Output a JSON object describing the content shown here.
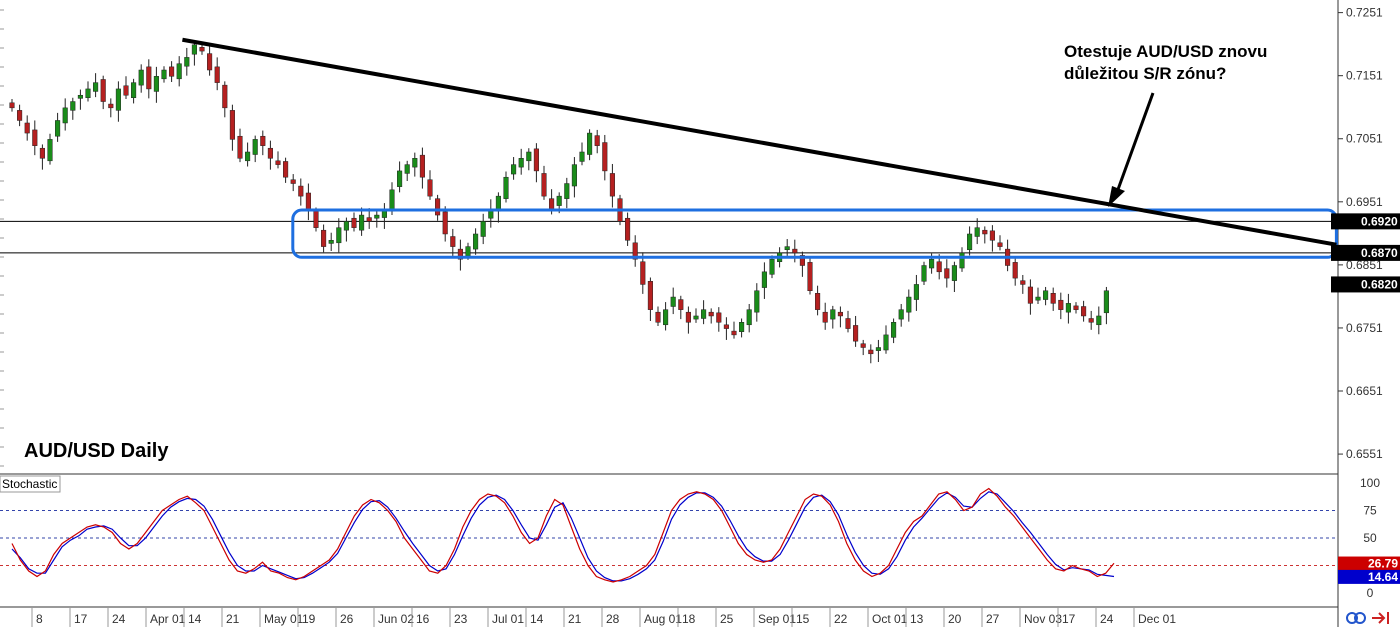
{
  "chart_data": [
    {
      "type": "candlestick",
      "title": "AUD/USD Daily",
      "annotation": [
        "Otestuje AUD/USD znovu",
        "důležitou S/R zónu?"
      ],
      "ylim": [
        0.6521,
        0.7271
      ],
      "y_ticks": [
        "0.7251",
        "0.7151",
        "0.7051",
        "0.6951",
        "0.6851",
        "0.6751",
        "0.6651",
        "0.6551"
      ],
      "price_tags": [
        {
          "label": "0.6920",
          "value": 0.692,
          "color": "#000000"
        },
        {
          "label": "0.6870",
          "value": 0.687,
          "color": "#000000"
        },
        {
          "label": "0.6820",
          "value": 0.682,
          "color": "#000000"
        }
      ],
      "horizontal_lines": [
        0.692,
        0.687
      ],
      "sr_zone": {
        "from_index": 38,
        "to_index": 174,
        "top": 0.6938,
        "bottom": 0.6863
      },
      "trendline": {
        "from_index": 24,
        "from_value": 0.7208,
        "to_index": 174,
        "to_value": 0.6883
      },
      "x_labels": [
        {
          "index": 0,
          "label": "8"
        },
        {
          "index": 5,
          "label": "17"
        },
        {
          "index": 10,
          "label": "24"
        },
        {
          "index": 15,
          "label": "Apr 01"
        },
        {
          "index": 20,
          "label": "14"
        },
        {
          "index": 25,
          "label": "21"
        },
        {
          "index": 30,
          "label": "May 01"
        },
        {
          "index": 35,
          "label": "19"
        },
        {
          "index": 40,
          "label": "26"
        },
        {
          "index": 45,
          "label": "Jun 02"
        },
        {
          "index": 50,
          "label": "16"
        },
        {
          "index": 55,
          "label": "23"
        },
        {
          "index": 60,
          "label": "Jul 01"
        },
        {
          "index": 65,
          "label": "14"
        },
        {
          "index": 70,
          "label": "21"
        },
        {
          "index": 75,
          "label": "28"
        },
        {
          "index": 80,
          "label": "Aug 01"
        },
        {
          "index": 85,
          "label": "18"
        },
        {
          "index": 90,
          "label": "25"
        },
        {
          "index": 95,
          "label": "Sep 01"
        },
        {
          "index": 100,
          "label": "15"
        },
        {
          "index": 105,
          "label": "22"
        },
        {
          "index": 110,
          "label": "Oct 01"
        },
        {
          "index": 115,
          "label": "13"
        },
        {
          "index": 120,
          "label": "20"
        },
        {
          "index": 125,
          "label": "27"
        },
        {
          "index": 130,
          "label": "Nov 03"
        },
        {
          "index": 135,
          "label": "17"
        },
        {
          "index": 140,
          "label": "24"
        },
        {
          "index": 145,
          "label": "Dec 01"
        }
      ],
      "close": [
        0.71,
        0.708,
        0.706,
        0.704,
        0.702,
        0.705,
        0.708,
        0.71,
        0.711,
        0.712,
        0.713,
        0.714,
        0.711,
        0.71,
        0.713,
        0.712,
        0.714,
        0.716,
        0.713,
        0.715,
        0.716,
        0.715,
        0.717,
        0.718,
        0.72,
        0.719,
        0.716,
        0.714,
        0.71,
        0.705,
        0.702,
        0.703,
        0.705,
        0.704,
        0.702,
        0.701,
        0.699,
        0.698,
        0.696,
        0.694,
        0.691,
        0.688,
        0.689,
        0.691,
        0.692,
        0.691,
        0.693,
        0.692,
        0.693,
        0.694,
        0.697,
        0.7,
        0.701,
        0.702,
        0.699,
        0.696,
        0.693,
        0.69,
        0.688,
        0.686,
        0.688,
        0.69,
        0.692,
        0.694,
        0.696,
        0.699,
        0.701,
        0.702,
        0.703,
        0.7,
        0.696,
        0.694,
        0.696,
        0.698,
        0.701,
        0.703,
        0.706,
        0.704,
        0.7,
        0.696,
        0.692,
        0.689,
        0.686,
        0.682,
        0.678,
        0.676,
        0.678,
        0.68,
        0.678,
        0.676,
        0.677,
        0.678,
        0.677,
        0.676,
        0.675,
        0.674,
        0.676,
        0.678,
        0.681,
        0.684,
        0.686,
        0.687,
        0.688,
        0.687,
        0.685,
        0.681,
        0.678,
        0.676,
        0.678,
        0.677,
        0.675,
        0.673,
        0.672,
        0.671,
        0.672,
        0.674,
        0.676,
        0.678,
        0.68,
        0.682,
        0.685,
        0.686,
        0.684,
        0.683,
        0.685,
        0.687,
        0.69,
        0.691,
        0.69,
        0.689,
        0.688,
        0.685,
        0.683,
        0.682,
        0.679,
        0.68,
        0.681,
        0.679,
        0.678,
        0.679,
        0.678,
        0.677,
        0.676,
        0.677,
        0.681
      ],
      "candle_range": [
        0,
        145
      ]
    },
    {
      "type": "line",
      "title": "Stochastic",
      "ylim": [
        0,
        100
      ],
      "y_ticks": [
        "100",
        "75",
        "50",
        "25",
        "0"
      ],
      "levels": [
        75,
        50,
        25
      ],
      "series": [
        {
          "name": "",
          "color": "#cc0000",
          "last_label": "26.79"
        },
        {
          "name": "",
          "color": "#0000cc",
          "last_label": "14.64"
        }
      ],
      "k": [
        45,
        30,
        20,
        15,
        20,
        35,
        45,
        50,
        55,
        60,
        62,
        60,
        55,
        45,
        40,
        45,
        55,
        65,
        75,
        80,
        85,
        88,
        82,
        75,
        60,
        45,
        30,
        20,
        18,
        22,
        28,
        20,
        18,
        14,
        12,
        15,
        20,
        25,
        30,
        40,
        55,
        70,
        80,
        85,
        82,
        75,
        65,
        50,
        40,
        30,
        20,
        18,
        25,
        40,
        60,
        75,
        85,
        90,
        88,
        82,
        70,
        55,
        45,
        50,
        70,
        85,
        80,
        60,
        40,
        25,
        15,
        12,
        10,
        12,
        15,
        20,
        25,
        35,
        55,
        75,
        85,
        90,
        92,
        90,
        85,
        75,
        60,
        45,
        35,
        30,
        28,
        30,
        40,
        55,
        70,
        85,
        90,
        88,
        80,
        65,
        45,
        30,
        20,
        15,
        18,
        25,
        40,
        55,
        65,
        70,
        80,
        90,
        92,
        85,
        75,
        78,
        90,
        95,
        88,
        78,
        70,
        60,
        50,
        40,
        30,
        22,
        20,
        25,
        22,
        20,
        15,
        18,
        27
      ],
      "d": [
        40,
        32,
        22,
        18,
        18,
        30,
        42,
        48,
        52,
        58,
        60,
        61,
        58,
        50,
        43,
        43,
        50,
        60,
        70,
        78,
        83,
        86,
        85,
        79,
        67,
        52,
        37,
        25,
        20,
        20,
        25,
        22,
        19,
        16,
        13,
        14,
        18,
        23,
        28,
        36,
        50,
        64,
        76,
        83,
        84,
        78,
        68,
        56,
        45,
        35,
        25,
        20,
        22,
        35,
        52,
        68,
        80,
        87,
        89,
        85,
        75,
        62,
        50,
        48,
        62,
        78,
        82,
        68,
        50,
        32,
        20,
        14,
        11,
        11,
        13,
        17,
        22,
        30,
        47,
        67,
        80,
        87,
        91,
        91,
        87,
        79,
        66,
        52,
        40,
        33,
        29,
        29,
        35,
        48,
        63,
        78,
        87,
        89,
        83,
        71,
        53,
        37,
        25,
        18,
        17,
        22,
        33,
        48,
        60,
        68,
        77,
        86,
        91,
        87,
        79,
        78,
        86,
        92,
        90,
        82,
        74,
        64,
        55,
        45,
        35,
        26,
        21,
        23,
        22,
        21,
        17,
        16,
        15
      ]
    }
  ]
}
